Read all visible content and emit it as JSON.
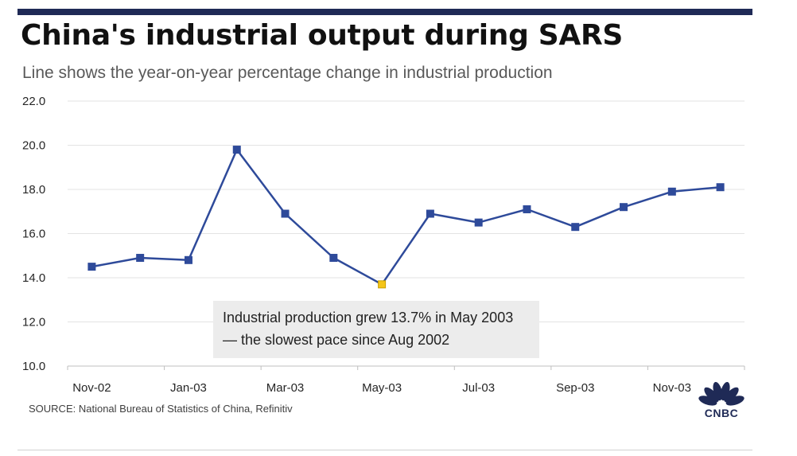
{
  "header": {
    "title": "China's industrial output during SARS",
    "subtitle": "Line shows the year-on-year percentage change in industrial production"
  },
  "chart_data": {
    "type": "line",
    "title": "China's industrial output during SARS",
    "subtitle": "Line shows the year-on-year percentage change in industrial production",
    "xlabel": "",
    "ylabel": "",
    "ylim": [
      10.0,
      22.0
    ],
    "yticks": [
      "10.0",
      "12.0",
      "14.0",
      "16.0",
      "18.0",
      "20.0",
      "22.0"
    ],
    "x": [
      "Nov-02",
      "Dec-02",
      "Jan-03",
      "Feb-03",
      "Mar-03",
      "Apr-03",
      "May-03",
      "Jun-03",
      "Jul-03",
      "Aug-03",
      "Sep-03",
      "Oct-03",
      "Nov-03",
      "Dec-03"
    ],
    "xtick_labels": [
      "Nov-02",
      "Jan-03",
      "Mar-03",
      "May-03",
      "Jul-03",
      "Sep-03",
      "Nov-03"
    ],
    "series": [
      {
        "values": [
          14.5,
          14.9,
          14.8,
          19.8,
          16.9,
          14.9,
          13.7,
          16.9,
          16.5,
          17.1,
          16.3,
          17.2,
          17.9,
          18.1
        ],
        "color": "#2e4a9a",
        "highlight_index": 6,
        "highlight_color": "#f5c518"
      }
    ],
    "grid": true,
    "legend": "none",
    "annotation": "Industrial production grew 13.7% in May 2003 — the slowest pace since Aug 2002"
  },
  "footer": {
    "source": "SOURCE: National Bureau of Statistics of China, Refinitiv",
    "logo_text": "CNBC"
  },
  "colors": {
    "top_bar": "#1f2a56",
    "line": "#2e4a9a",
    "highlight": "#f5c518",
    "grid": "#e3e3e3",
    "annotation_bg": "#ececec"
  },
  "icons": {
    "logo": "cnbc-peacock-icon"
  }
}
